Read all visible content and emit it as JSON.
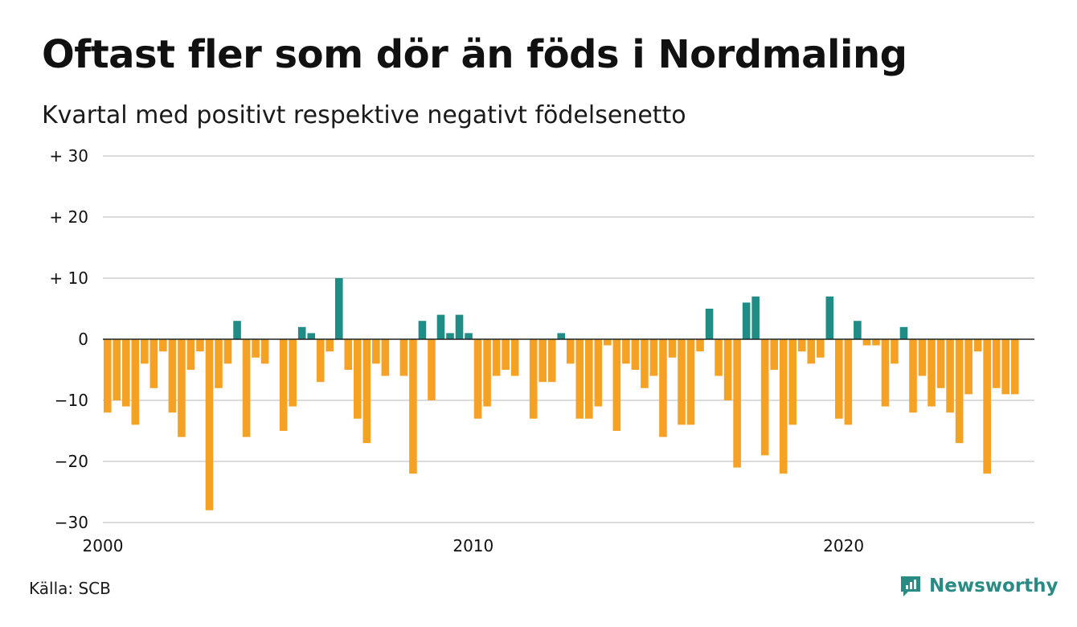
{
  "title": "Oftast fler som dör än föds i Nordmaling",
  "subtitle": "Kvartal med positivt respektive negativt födelsenetto",
  "source": "Källa: SCB",
  "brand": {
    "name": "Newsworthy",
    "icon": "newsworthy-logo-icon"
  },
  "colors": {
    "positive": "#1f8c86",
    "negative": "#f5a124",
    "grid": "#dcdcdc",
    "zero_line": "#222222"
  },
  "chart_data": {
    "type": "bar",
    "title": "Oftast fler som dör än föds i Nordmaling",
    "subtitle": "Kvartal med positivt respektive negativt födelsenetto",
    "xlabel": "",
    "ylabel": "",
    "ylim": [
      -30,
      30
    ],
    "yticks": [
      30,
      20,
      10,
      0,
      -10,
      -20,
      -30
    ],
    "ytick_labels": [
      "+ 30",
      "+ 20",
      "+ 10",
      "0",
      "−10",
      "−20",
      "−30"
    ],
    "xticks": [
      2000,
      2010,
      2020
    ],
    "xtick_labels": [
      "2000",
      "2010",
      "2020"
    ],
    "x_start": "2000 Q1",
    "x_unit": "quarter",
    "grid": true,
    "values": [
      -12,
      -10,
      -11,
      -14,
      -4,
      -8,
      -2,
      -12,
      -16,
      -5,
      -2,
      -28,
      -8,
      -4,
      3,
      -16,
      -3,
      -4,
      0,
      -15,
      -11,
      2,
      1,
      -7,
      -2,
      10,
      -5,
      -13,
      -17,
      -4,
      -6,
      0,
      -6,
      -22,
      3,
      -10,
      4,
      1,
      4,
      1,
      -13,
      -11,
      -6,
      -5,
      -6,
      0,
      -13,
      -7,
      -7,
      1,
      -4,
      -13,
      -13,
      -11,
      -1,
      -15,
      -4,
      -5,
      -8,
      -6,
      -16,
      -3,
      -14,
      -14,
      -2,
      5,
      -6,
      -10,
      -21,
      6,
      7,
      -19,
      -5,
      -22,
      -14,
      -2,
      -4,
      -3,
      7,
      -13,
      -14,
      3,
      -1,
      -1,
      -11,
      -4,
      2,
      -12,
      -6,
      -11,
      -8,
      -12,
      -17,
      -9,
      -2,
      -22,
      -8,
      -9,
      -9
    ]
  }
}
